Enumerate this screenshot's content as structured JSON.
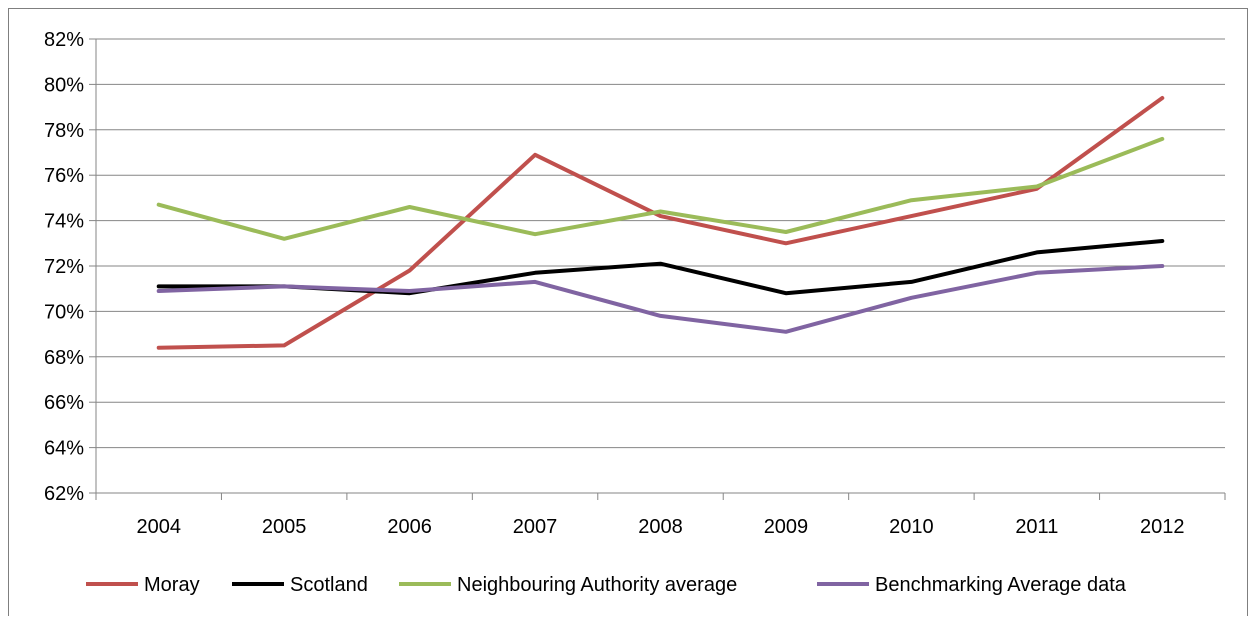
{
  "chart_data": {
    "type": "line",
    "categories": [
      "2004",
      "2005",
      "2006",
      "2007",
      "2008",
      "2009",
      "2010",
      "2011",
      "2012"
    ],
    "y_ticks": [
      "62%",
      "64%",
      "66%",
      "68%",
      "70%",
      "72%",
      "74%",
      "76%",
      "78%",
      "80%",
      "82%"
    ],
    "ylim": [
      62,
      82
    ],
    "y_unit": "%",
    "grid": true,
    "legend_position": "bottom",
    "series": [
      {
        "name": "Moray",
        "color": "#c0504d",
        "values": [
          68.4,
          68.5,
          71.8,
          76.9,
          74.2,
          73.0,
          74.2,
          75.4,
          79.4
        ]
      },
      {
        "name": "Scotland",
        "color": "#000000",
        "values": [
          71.1,
          71.1,
          70.8,
          71.7,
          72.1,
          70.8,
          71.3,
          72.6,
          73.1
        ]
      },
      {
        "name": "Neighbouring Authority average",
        "color": "#9bbb59",
        "values": [
          74.7,
          73.2,
          74.6,
          73.4,
          74.4,
          73.5,
          74.9,
          75.5,
          77.6
        ]
      },
      {
        "name": "Benchmarking Average data",
        "color": "#8064a2",
        "values": [
          70.9,
          71.1,
          70.9,
          71.3,
          69.8,
          69.1,
          70.6,
          71.7,
          72.0
        ]
      }
    ]
  }
}
